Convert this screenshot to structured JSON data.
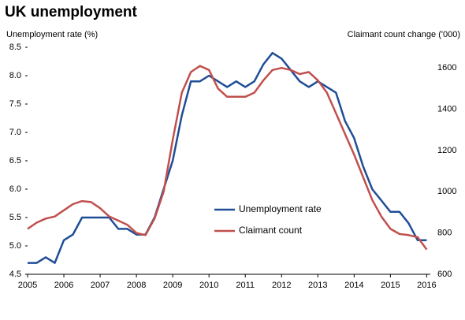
{
  "chart_data": {
    "type": "line",
    "title": "UK unemployment",
    "y_label": "Unemployment rate (%)",
    "y2_label": "Claimant count change ('000)",
    "x": [
      2005.0,
      2005.25,
      2005.5,
      2005.75,
      2006.0,
      2006.25,
      2006.5,
      2006.75,
      2007.0,
      2007.25,
      2007.5,
      2007.75,
      2008.0,
      2008.25,
      2008.5,
      2008.75,
      2009.0,
      2009.25,
      2009.5,
      2009.75,
      2010.0,
      2010.25,
      2010.5,
      2010.75,
      2011.0,
      2011.25,
      2011.5,
      2011.75,
      2012.0,
      2012.25,
      2012.5,
      2012.75,
      2013.0,
      2013.25,
      2013.5,
      2013.75,
      2014.0,
      2014.25,
      2014.5,
      2014.75,
      2015.0,
      2015.25,
      2015.5,
      2015.75,
      2016.0
    ],
    "series": [
      {
        "name": "Unemployment rate",
        "color": "#1f4e96",
        "axis": "y",
        "values": [
          4.7,
          4.7,
          4.8,
          4.7,
          5.1,
          5.2,
          5.5,
          5.5,
          5.5,
          5.5,
          5.3,
          5.3,
          5.2,
          5.2,
          5.5,
          6.0,
          6.5,
          7.3,
          7.9,
          7.9,
          8.0,
          7.9,
          7.8,
          7.9,
          7.8,
          7.9,
          8.2,
          8.4,
          8.3,
          8.1,
          7.9,
          7.8,
          7.9,
          7.8,
          7.7,
          7.2,
          6.9,
          6.4,
          6.0,
          5.8,
          5.6,
          5.6,
          5.4,
          5.1,
          5.1
        ]
      },
      {
        "name": "Claimant count",
        "color": "#c0504d",
        "axis": "y2",
        "values": [
          820,
          850,
          870,
          880,
          910,
          940,
          955,
          950,
          920,
          880,
          860,
          840,
          800,
          790,
          870,
          1000,
          1250,
          1480,
          1580,
          1610,
          1590,
          1500,
          1460,
          1460,
          1460,
          1480,
          1540,
          1590,
          1600,
          1590,
          1570,
          1580,
          1540,
          1480,
          1380,
          1280,
          1180,
          1070,
          960,
          880,
          820,
          795,
          790,
          780,
          720
        ]
      }
    ],
    "xlim": [
      2005,
      2016.1
    ],
    "xticks": [
      2005,
      2006,
      2007,
      2008,
      2009,
      2010,
      2011,
      2012,
      2013,
      2014,
      2015,
      2016
    ],
    "ylim": [
      4.5,
      8.5
    ],
    "yticks": [
      4.5,
      {
        "value": 5,
        "label": "5.0"
      },
      5.5,
      {
        "value": 6,
        "label": "6.0"
      },
      6.5,
      {
        "value": 7,
        "label": "7.0"
      },
      7.5,
      {
        "value": 8,
        "label": "8.0"
      },
      8.5
    ],
    "y2lim": [
      600,
      1700
    ],
    "y2ticks": [
      600,
      800,
      1000,
      1200,
      1400,
      1600
    ],
    "grid": false
  }
}
